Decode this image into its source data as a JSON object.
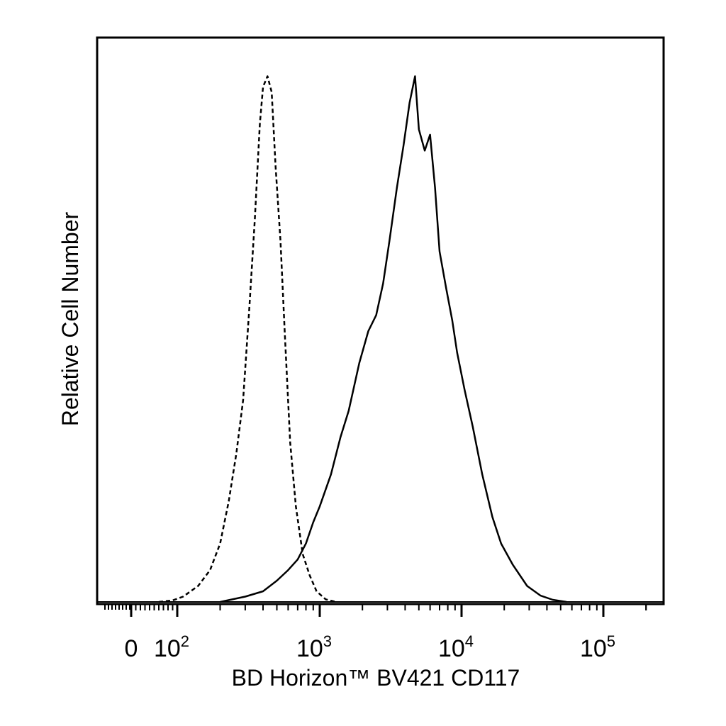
{
  "chart_data": {
    "type": "line",
    "xscale": "biexponential",
    "xlabel": "BD Horizon™ BV421 CD117",
    "ylabel": "Relative Cell Number",
    "xlim": [
      -120,
      250000
    ],
    "ylim": [
      0,
      1
    ],
    "grid": false,
    "legend": "none",
    "x_ticks": [
      {
        "value": 0,
        "text": "0"
      },
      {
        "value": 100,
        "base": "10",
        "exp": "2"
      },
      {
        "value": 1000,
        "base": "10",
        "exp": "3"
      },
      {
        "value": 10000,
        "base": "10",
        "exp": "4"
      },
      {
        "value": 100000,
        "base": "10",
        "exp": "5"
      }
    ],
    "series": [
      {
        "style": "dashed",
        "color": "#000000",
        "points": [
          [
            60,
            0
          ],
          [
            90,
            0.003
          ],
          [
            110,
            0.01
          ],
          [
            140,
            0.03
          ],
          [
            170,
            0.06
          ],
          [
            200,
            0.11
          ],
          [
            230,
            0.19
          ],
          [
            260,
            0.28
          ],
          [
            290,
            0.38
          ],
          [
            320,
            0.55
          ],
          [
            350,
            0.72
          ],
          [
            380,
            0.9
          ],
          [
            400,
            0.97
          ],
          [
            430,
            0.99
          ],
          [
            460,
            0.96
          ],
          [
            490,
            0.82
          ],
          [
            530,
            0.68
          ],
          [
            570,
            0.5
          ],
          [
            620,
            0.3
          ],
          [
            680,
            0.18
          ],
          [
            760,
            0.09
          ],
          [
            850,
            0.05
          ],
          [
            950,
            0.02
          ],
          [
            1100,
            0.005
          ],
          [
            1300,
            0
          ]
        ]
      },
      {
        "style": "solid",
        "color": "#000000",
        "points": [
          [
            200,
            0
          ],
          [
            300,
            0.01
          ],
          [
            400,
            0.02
          ],
          [
            500,
            0.04
          ],
          [
            600,
            0.06
          ],
          [
            700,
            0.08
          ],
          [
            800,
            0.11
          ],
          [
            900,
            0.15
          ],
          [
            1000,
            0.18
          ],
          [
            1200,
            0.24
          ],
          [
            1400,
            0.31
          ],
          [
            1600,
            0.36
          ],
          [
            1900,
            0.45
          ],
          [
            2200,
            0.51
          ],
          [
            2500,
            0.54
          ],
          [
            2800,
            0.6
          ],
          [
            3100,
            0.68
          ],
          [
            3500,
            0.78
          ],
          [
            3900,
            0.86
          ],
          [
            4300,
            0.94
          ],
          [
            4700,
            0.99
          ],
          [
            5000,
            0.89
          ],
          [
            5500,
            0.85
          ],
          [
            6000,
            0.88
          ],
          [
            6500,
            0.78
          ],
          [
            7000,
            0.66
          ],
          [
            7800,
            0.59
          ],
          [
            8600,
            0.53
          ],
          [
            9300,
            0.47
          ],
          [
            10500,
            0.4
          ],
          [
            12000,
            0.33
          ],
          [
            14000,
            0.24
          ],
          [
            16500,
            0.16
          ],
          [
            19000,
            0.11
          ],
          [
            23000,
            0.07
          ],
          [
            29000,
            0.03
          ],
          [
            36000,
            0.012
          ],
          [
            44000,
            0.004
          ],
          [
            55000,
            0
          ]
        ]
      }
    ]
  }
}
